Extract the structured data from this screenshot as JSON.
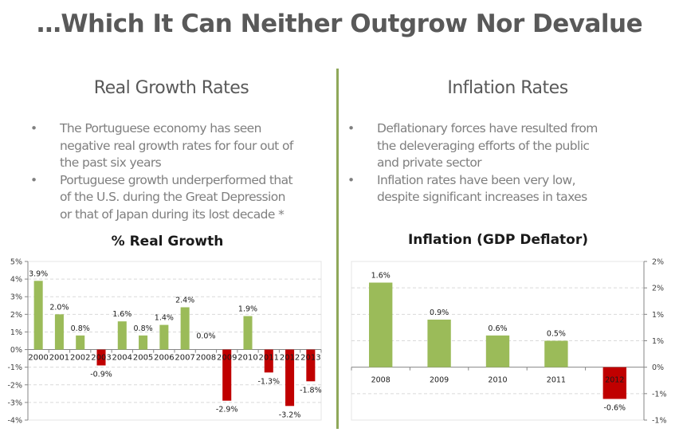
{
  "page": {
    "title": "…Which It Can Neither Outgrow Nor Devalue"
  },
  "left": {
    "heading": "Real Growth Rates",
    "bullets": [
      {
        "lines": [
          "The Portuguese economy has seen",
          "negative real growth rates for four out of",
          "the past six years"
        ]
      },
      {
        "lines": [
          "Portuguese growth underperformed that",
          "of the U.S. during the Great Depression",
          "or that of Japan during its lost decade *"
        ]
      }
    ]
  },
  "right": {
    "heading": "Inflation Rates",
    "bullets": [
      {
        "lines": [
          "Deflationary forces have resulted from",
          "the deleveraging efforts of the public",
          "and private sector"
        ]
      },
      {
        "lines": [
          "Inflation rates have been very low,",
          "despite significant increases in taxes"
        ]
      }
    ]
  },
  "colors": {
    "positive": "#9bbb59",
    "negative": "#c00000",
    "grid": "#d9d9d9",
    "axis": "#868686",
    "divider": "#8fa85a"
  },
  "chart_data": [
    {
      "type": "bar",
      "title": "% Real Growth",
      "xlabel": "",
      "ylabel": "",
      "categories": [
        "2000",
        "2001",
        "2002",
        "2003",
        "2004",
        "2005",
        "2006",
        "2007",
        "2008",
        "2009",
        "2010",
        "2011",
        "2012",
        "2013"
      ],
      "values": [
        3.9,
        2.0,
        0.8,
        -0.9,
        1.6,
        0.8,
        1.4,
        2.4,
        0.0,
        -2.9,
        1.9,
        -1.3,
        -3.2,
        -1.8
      ],
      "data_labels": [
        "3.9%",
        "2.0%",
        "0.8%",
        "-0.9%",
        "1.6%",
        "0.8%",
        "1.4%",
        "2.4%",
        "0.0%",
        "-2.9%",
        "1.9%",
        "-1.3%",
        "-3.2%",
        "-1.8%"
      ],
      "ylim": [
        -4,
        5
      ],
      "yticks": [
        5,
        4,
        3,
        2,
        1,
        0,
        -1,
        -2,
        -3,
        -4
      ],
      "ytick_labels": [
        "5%",
        "4%",
        "3%",
        "2%",
        "1%",
        "0%",
        "-1%",
        "-2%",
        "-3%",
        "-4%"
      ],
      "y_axis_side": "left",
      "grid": true,
      "legend": "none"
    },
    {
      "type": "bar",
      "title": "Inflation (GDP Deflator)",
      "xlabel": "",
      "ylabel": "",
      "categories": [
        "2008",
        "2009",
        "2010",
        "2011",
        "2012"
      ],
      "values": [
        1.6,
        0.9,
        0.6,
        0.5,
        -0.6
      ],
      "data_labels": [
        "1.6%",
        "0.9%",
        "0.6%",
        "0.5%",
        "-0.6%"
      ],
      "ylim": [
        -1.0,
        2.0
      ],
      "yticks": [
        2.0,
        1.5,
        1.0,
        0.5,
        0,
        -0.5,
        -1.0
      ],
      "ytick_labels": [
        "2%",
        "2%",
        "1%",
        "1%",
        "0%",
        "-1%",
        "-1%"
      ],
      "y_axis_side": "right",
      "grid": true,
      "legend": "none"
    }
  ]
}
